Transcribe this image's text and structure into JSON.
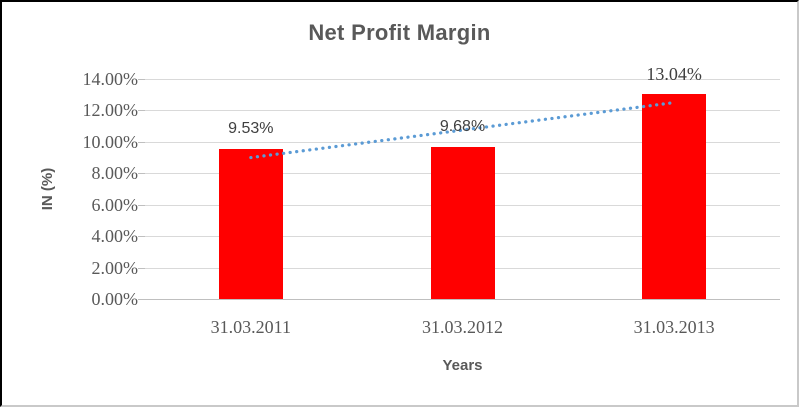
{
  "chart_data": {
    "type": "bar",
    "title": "Net Profit Margin",
    "xlabel": "Years",
    "ylabel": "IN (%)",
    "categories": [
      "31.03.2011",
      "31.03.2012",
      "31.03.2013"
    ],
    "values": [
      9.53,
      9.68,
      13.04
    ],
    "data_labels": [
      "9.53%",
      "9.68%",
      "13.04%"
    ],
    "ylim": [
      0,
      14
    ],
    "ytick_step": 2,
    "ytick_labels": [
      "0.00%",
      "2.00%",
      "4.00%",
      "6.00%",
      "8.00%",
      "10.00%",
      "12.00%",
      "14.00%"
    ],
    "grid": true,
    "legend": "none",
    "bar_color": "#ff0000",
    "gridline_color": "#d9d9d9",
    "axis_line_color": "#bfbfbf",
    "text_color": "#595959",
    "trendline": {
      "kind": "linear",
      "line_style": "dotted",
      "color": "#5b9bd5",
      "start_value_pct": 9.0,
      "end_value_pct": 12.5
    }
  }
}
